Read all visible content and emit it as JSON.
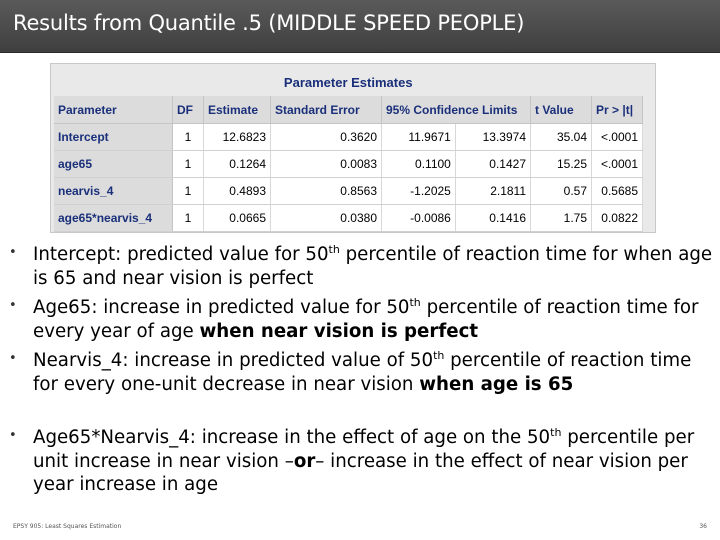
{
  "slide": {
    "title": "Results from Quantile .5 (MIDDLE SPEED PEOPLE)"
  },
  "table": {
    "caption": "Parameter Estimates",
    "headers": [
      "Parameter",
      "DF",
      "Estimate",
      "Standard Error",
      "95% Confidence Limits",
      "t Value",
      "Pr > |t|"
    ],
    "rows": [
      [
        "Intercept",
        "1",
        "12.6823",
        "0.3620",
        "11.9671",
        "13.3974",
        "35.04",
        "<.0001"
      ],
      [
        "age65",
        "1",
        "0.1264",
        "0.0083",
        "0.1100",
        "0.1427",
        "15.25",
        "<.0001"
      ],
      [
        "nearvis_4",
        "1",
        "0.4893",
        "0.8563",
        "-1.2025",
        "2.1811",
        "0.57",
        "0.5685"
      ],
      [
        "age65*nearvis_4",
        "1",
        "0.0665",
        "0.0380",
        "-0.0086",
        "0.1416",
        "1.75",
        "0.0822"
      ]
    ]
  },
  "bullets": {
    "b1": {
      "a": "Intercept: predicted value for 50",
      "sup": "th",
      "b": " percentile of reaction time for when age is 65 and near vision is perfect"
    },
    "b2": {
      "a": "Age65: increase in predicted value for 50",
      "sup": "th",
      "b": " percentile of reaction time for every year of age ",
      "bold": "when near vision is perfect"
    },
    "b3": {
      "a": "Nearvis_4: increase in predicted value of 50",
      "sup": "th",
      "b": " percentile of reaction time for every one-unit decrease in near vision ",
      "bold": "when age is 65"
    },
    "b4": {
      "a": "Age65*Nearvis_4: increase in the effect of age on the 50",
      "sup": "th",
      "b": " percentile per unit increase in near vision –",
      "bold": "or",
      "c": "– increase in the effect of near vision per year increase in age"
    },
    "marker": "•"
  },
  "footer": {
    "left": "EPSY 905: Least Squares Estimation",
    "page": "36"
  }
}
